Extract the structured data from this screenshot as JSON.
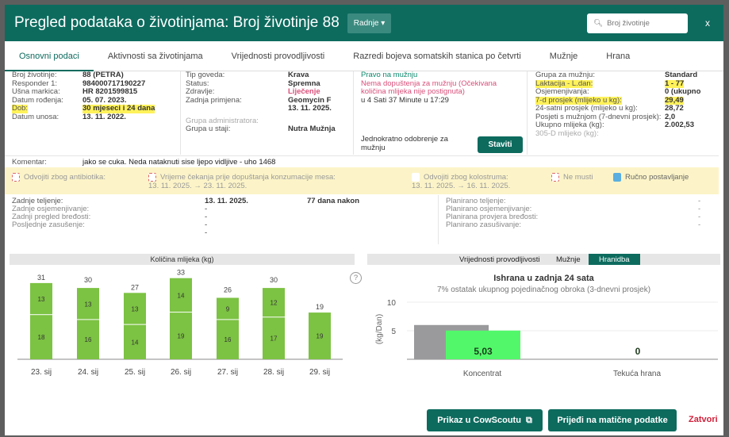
{
  "header": {
    "title": "Pregled podataka o životinjama: Broj životinje 88",
    "actions": "Radnje ▾",
    "search_placeholder": "Broj životinje",
    "close": "x"
  },
  "tabs": [
    "Osnovni podaci",
    "Aktivnosti sa životinjama",
    "Vrijednosti provodljivosti",
    "Razredi bojeva somatskih stanica po četvrti",
    "Mužnje",
    "Hrana"
  ],
  "col1": [
    [
      "Broj životinje:",
      "88 (PETRA)"
    ],
    [
      "Responder 1:",
      "984000717190227"
    ],
    [
      "Ušna markica:",
      "HR 8201599815"
    ],
    [
      "Datum rođenja:",
      "05. 07. 2023."
    ],
    [
      "Dob:",
      "30 mjeseci i 24 dana"
    ],
    [
      "Datum unosa:",
      "13. 11. 2022."
    ]
  ],
  "col2": [
    [
      "Tip goveda:",
      "Krava"
    ],
    [
      "Status:",
      "Spremna"
    ],
    [
      "Zdravlje:",
      "Liječenje"
    ],
    [
      "Zadnja primjena:",
      "Geomycin F"
    ],
    [
      "",
      "13. 11. 2025."
    ],
    [
      "Grupa administratora:",
      ""
    ],
    [
      "Grupa u staji:",
      "Nutra Mužnja"
    ]
  ],
  "milking_right": {
    "title": "Pravo na mužnju",
    "warning": "Nema dopuštenja za mužnju (Očekivana količina mlijeka nije postignuta)",
    "time": "u 4 Sati 37 Minute u 17:29",
    "once_label": "Jednokratno odobrenje za mužnju",
    "set_button": "Staviti"
  },
  "col4": [
    [
      "Grupa za mužnju:",
      "Standard"
    ],
    [
      "Laktacija - L.dan:",
      "1 - 77"
    ],
    [
      "Osjemenjivanja:",
      "0 (ukupno"
    ],
    [
      "7-d prosjek (mlijeko u kg):",
      "29,49"
    ],
    [
      "24-satni prosjek (mlijeko u kg):",
      "28,72"
    ],
    [
      "Posjeti s mužnjom (7-dnevni prosjek):",
      "2,0"
    ],
    [
      "Ukupno mlijeka (kg):",
      "2.002,53"
    ],
    [
      "305-D mlijeko (kg):",
      ""
    ]
  ],
  "comment": {
    "label": "Komentar:",
    "text": "jako se cuka. Neda nataknuti sise ljepo vidljive - uho 1468"
  },
  "flags": {
    "antibiotic": "Odvojiti zbog antibiotika:",
    "meat_wait": "Vrijeme čekanja prije dopuštanja konzumacije mesa:",
    "meat_range": "13. 11. 2025. → 23. 11. 2025.",
    "colostrum": "Odvojiti zbog kolostruma:",
    "colostrum_range": "13. 11. 2025. → 16. 11. 2025.",
    "no_milk": "Ne musti",
    "manual": "Ručno postavljanje"
  },
  "repro_left": [
    [
      "Zadnje teljenje:",
      "13. 11. 2025.",
      "77 dana nakon"
    ],
    [
      "Zadnje osjemenjivanje:",
      "-",
      ""
    ],
    [
      "Zadnji pregled bređosti:",
      "-",
      ""
    ],
    [
      "Posljednje zasušenje:",
      "-",
      ""
    ],
    [
      "",
      "-",
      ""
    ]
  ],
  "repro_right": [
    [
      "Planirano teljenje:",
      "-"
    ],
    [
      "Planirano osjemenjivanje:",
      "-"
    ],
    [
      "Planirana provjera bređosti:",
      "-"
    ],
    [
      "Planirano zasušivanje:",
      "-"
    ]
  ],
  "chart_tabs": [
    "Vrijednosti provodljivosti",
    "Mužnje",
    "Hranidba"
  ],
  "chart_data": [
    {
      "type": "bar",
      "title": "Količina mlijeka (kg)",
      "categories": [
        "23. sij",
        "24. sij",
        "25. sij",
        "26. sij",
        "27. sij",
        "28. sij",
        "29. sij"
      ],
      "totals": [
        31,
        30,
        27,
        33,
        26,
        30,
        19
      ],
      "series": [
        {
          "values": [
            18,
            16,
            14,
            19,
            16,
            17,
            19
          ]
        },
        {
          "values": [
            13,
            13,
            13,
            14,
            9,
            12,
            0
          ]
        }
      ],
      "color": "#7cc243"
    },
    {
      "type": "bar",
      "title": "Ishrana u zadnja 24 sata",
      "subtitle": "7% ostatak ukupnog pojedinačnog obroka (3-dnevni prosjek)",
      "ylabel": "(kg/Dan)",
      "ylim": [
        0,
        10
      ],
      "yticks": [
        5,
        10
      ],
      "categories": [
        "Koncentrat",
        "Tekuća hrana"
      ],
      "series": [
        {
          "values": [
            6,
            0
          ],
          "color": "#9a9a9d"
        },
        {
          "values": [
            5.03,
            0
          ],
          "color": "#52f86a"
        }
      ],
      "labels": [
        "5,03",
        "0"
      ]
    }
  ],
  "help": "?",
  "footer": {
    "cowscout": "Prikaz u CowScoutu",
    "master": "Prijeđi na matične podatke",
    "close": "Zatvori"
  }
}
